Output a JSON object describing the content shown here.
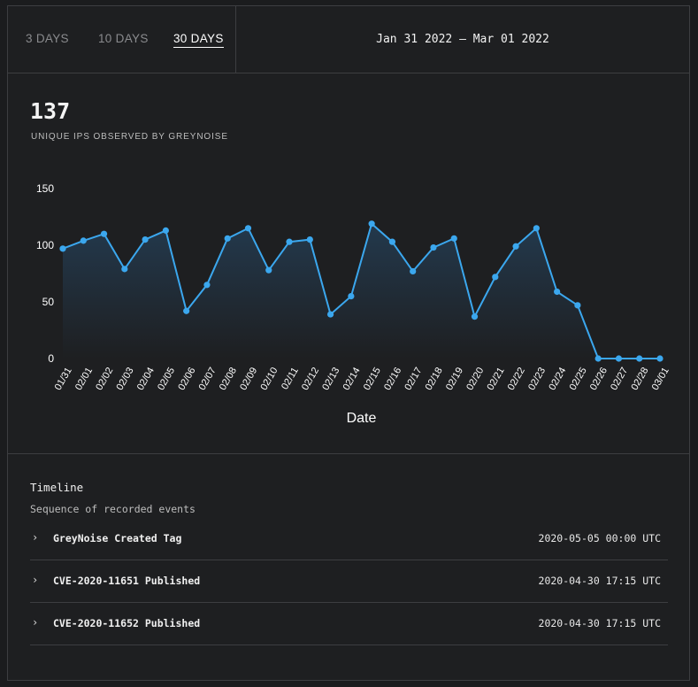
{
  "tabs": [
    {
      "label": "3 DAYS",
      "active": false
    },
    {
      "label": "10 DAYS",
      "active": false
    },
    {
      "label": "30 DAYS",
      "active": true
    }
  ],
  "date_range": "Jan 31 2022 – Mar 01 2022",
  "stat": {
    "value": "137",
    "label": "UNIQUE IPS OBSERVED BY GREYNOISE"
  },
  "colors": {
    "line": "#3ba7ee",
    "fill_top": "#23394d",
    "fill_bottom": "#1e1f21"
  },
  "chart_data": {
    "type": "area",
    "categories": [
      "01/31",
      "02/01",
      "02/02",
      "02/03",
      "02/04",
      "02/05",
      "02/06",
      "02/07",
      "02/08",
      "02/09",
      "02/10",
      "02/11",
      "02/12",
      "02/13",
      "02/14",
      "02/15",
      "02/16",
      "02/17",
      "02/18",
      "02/19",
      "02/20",
      "02/21",
      "02/22",
      "02/23",
      "02/24",
      "02/25",
      "02/26",
      "02/27",
      "02/28",
      "03/01"
    ],
    "values": [
      97,
      104,
      110,
      79,
      105,
      113,
      42,
      65,
      106,
      115,
      78,
      103,
      105,
      39,
      55,
      119,
      103,
      77,
      98,
      106,
      37,
      72,
      99,
      115,
      59,
      47,
      0,
      0,
      0,
      0
    ],
    "xlabel": "Date",
    "ylabel": "",
    "yticks": [
      0,
      50,
      100,
      150
    ],
    "ylim": [
      0,
      150
    ],
    "grid": false,
    "legend": false
  },
  "timeline": {
    "title": "Timeline",
    "subtitle": "Sequence of recorded events",
    "events": [
      {
        "name": "GreyNoise Created Tag",
        "date": "2020-05-05 00:00 UTC",
        "icon": "chevron-right-icon"
      },
      {
        "name": "CVE-2020-11651 Published",
        "date": "2020-04-30 17:15 UTC",
        "icon": "chevron-right-icon"
      },
      {
        "name": "CVE-2020-11652 Published",
        "date": "2020-04-30 17:15 UTC",
        "icon": "chevron-right-icon"
      }
    ]
  }
}
